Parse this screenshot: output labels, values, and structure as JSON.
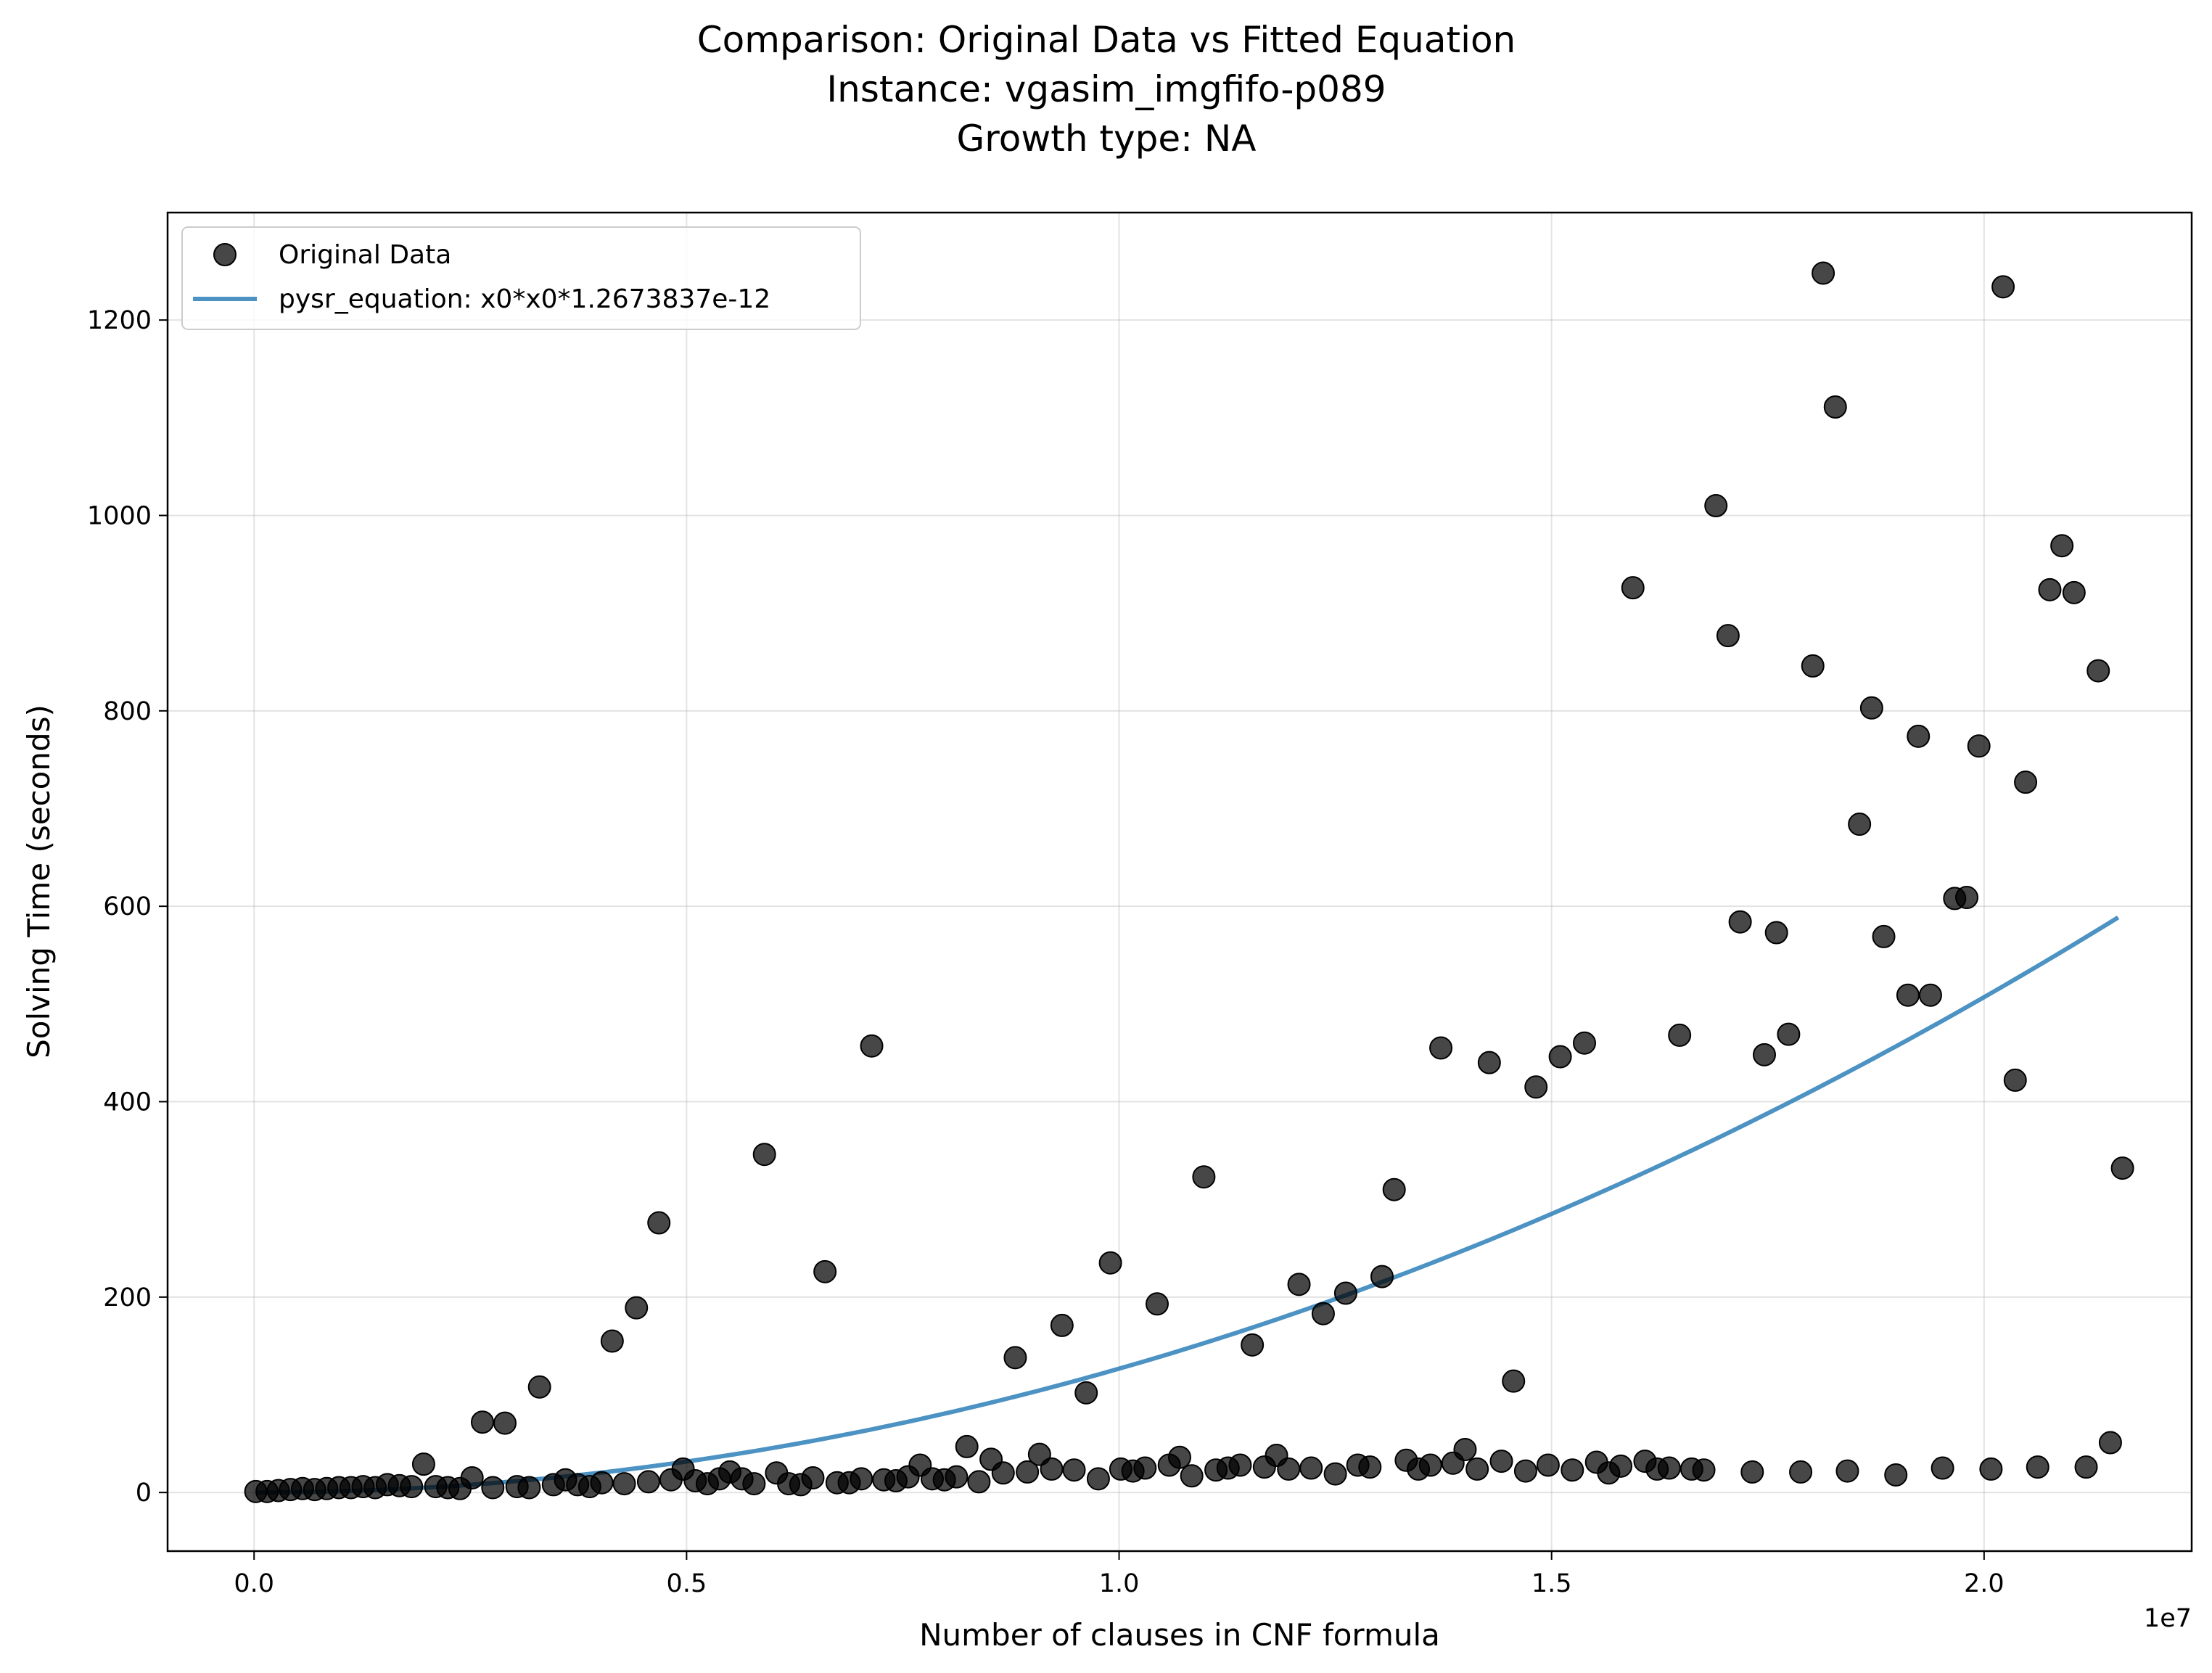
{
  "chart_data": {
    "type": "scatter",
    "title_lines": [
      "Comparison: Original Data vs Fitted Equation",
      "Instance: vgasim_imgfifo-p089",
      "Growth type: NA"
    ],
    "xlabel": "Number of clauses in CNF formula",
    "ylabel": "Solving Time (seconds)",
    "x_offset_label": "1e7",
    "xlim": [
      -1.0,
      22.4
    ],
    "ylim": [
      -60,
      1310
    ],
    "x_unit_scale": 10000000.0,
    "x_ticks": [
      0.0,
      0.5,
      1.0,
      1.5,
      2.0
    ],
    "x_tick_labels": [
      "0.0",
      "0.5",
      "1.0",
      "1.5",
      "2.0"
    ],
    "y_ticks": [
      0,
      200,
      400,
      600,
      800,
      1000,
      1200
    ],
    "y_tick_labels": [
      "0",
      "200",
      "400",
      "600",
      "800",
      "1000",
      "1200"
    ],
    "grid": true,
    "legend_position": "top-left",
    "colors": {
      "points": "#000000",
      "line": "#1f77b4"
    },
    "series": [
      {
        "name": "Original Data",
        "kind": "scatter",
        "note": "x in units of 1e6 clauses, y in seconds",
        "points": [
          [
            0.02,
            1
          ],
          [
            0.15,
            1
          ],
          [
            0.28,
            2
          ],
          [
            0.42,
            3
          ],
          [
            0.56,
            4
          ],
          [
            0.7,
            3
          ],
          [
            0.84,
            4
          ],
          [
            0.98,
            5
          ],
          [
            1.12,
            5
          ],
          [
            1.26,
            6
          ],
          [
            1.4,
            5
          ],
          [
            1.54,
            8
          ],
          [
            1.68,
            7
          ],
          [
            1.82,
            6
          ],
          [
            1.96,
            29
          ],
          [
            2.1,
            6
          ],
          [
            2.24,
            5
          ],
          [
            2.38,
            4
          ],
          [
            2.52,
            15
          ],
          [
            2.64,
            72
          ],
          [
            2.76,
            5
          ],
          [
            2.9,
            71
          ],
          [
            3.04,
            6
          ],
          [
            3.18,
            5
          ],
          [
            3.3,
            108
          ],
          [
            3.46,
            8
          ],
          [
            3.6,
            13
          ],
          [
            3.74,
            8
          ],
          [
            3.88,
            6
          ],
          [
            4.02,
            10
          ],
          [
            4.14,
            155
          ],
          [
            4.28,
            9
          ],
          [
            4.42,
            189
          ],
          [
            4.56,
            11
          ],
          [
            4.68,
            276
          ],
          [
            4.82,
            13
          ],
          [
            4.96,
            24
          ],
          [
            5.1,
            12
          ],
          [
            5.24,
            9
          ],
          [
            5.38,
            14
          ],
          [
            5.5,
            21
          ],
          [
            5.64,
            14
          ],
          [
            5.78,
            9
          ],
          [
            5.9,
            346
          ],
          [
            6.04,
            20
          ],
          [
            6.18,
            9
          ],
          [
            6.32,
            8
          ],
          [
            6.46,
            15
          ],
          [
            6.6,
            226
          ],
          [
            6.74,
            10
          ],
          [
            6.88,
            10
          ],
          [
            7.02,
            14
          ],
          [
            7.14,
            457
          ],
          [
            7.28,
            13
          ],
          [
            7.42,
            12
          ],
          [
            7.56,
            16
          ],
          [
            7.7,
            28
          ],
          [
            7.84,
            14
          ],
          [
            7.98,
            13
          ],
          [
            8.12,
            16
          ],
          [
            8.24,
            47
          ],
          [
            8.38,
            11
          ],
          [
            8.52,
            34
          ],
          [
            8.66,
            20
          ],
          [
            8.8,
            138
          ],
          [
            8.94,
            21
          ],
          [
            9.08,
            39
          ],
          [
            9.22,
            24
          ],
          [
            9.34,
            171
          ],
          [
            9.48,
            23
          ],
          [
            9.62,
            102
          ],
          [
            9.76,
            14
          ],
          [
            9.9,
            235
          ],
          [
            10.02,
            24
          ],
          [
            10.16,
            22
          ],
          [
            10.3,
            25
          ],
          [
            10.44,
            193
          ],
          [
            10.58,
            28
          ],
          [
            10.7,
            36
          ],
          [
            10.84,
            17
          ],
          [
            10.98,
            323
          ],
          [
            11.12,
            23
          ],
          [
            11.26,
            25
          ],
          [
            11.4,
            28
          ],
          [
            11.54,
            151
          ],
          [
            11.68,
            26
          ],
          [
            11.82,
            38
          ],
          [
            11.96,
            24
          ],
          [
            12.08,
            213
          ],
          [
            12.22,
            25
          ],
          [
            12.36,
            183
          ],
          [
            12.5,
            19
          ],
          [
            12.62,
            204
          ],
          [
            12.76,
            28
          ],
          [
            12.9,
            26
          ],
          [
            13.04,
            221
          ],
          [
            13.18,
            310
          ],
          [
            13.32,
            33
          ],
          [
            13.46,
            24
          ],
          [
            13.6,
            28
          ],
          [
            13.72,
            455
          ],
          [
            13.86,
            30
          ],
          [
            14.0,
            44
          ],
          [
            14.14,
            24
          ],
          [
            14.28,
            440
          ],
          [
            14.42,
            32
          ],
          [
            14.56,
            114
          ],
          [
            14.7,
            22
          ],
          [
            14.82,
            415
          ],
          [
            14.96,
            28
          ],
          [
            15.1,
            446
          ],
          [
            15.24,
            23
          ],
          [
            15.38,
            460
          ],
          [
            15.52,
            31
          ],
          [
            15.66,
            20
          ],
          [
            15.8,
            27
          ],
          [
            15.94,
            926
          ],
          [
            16.08,
            32
          ],
          [
            16.22,
            24
          ],
          [
            16.36,
            25
          ],
          [
            16.48,
            468
          ],
          [
            16.62,
            24
          ],
          [
            16.76,
            23
          ],
          [
            16.9,
            1010
          ],
          [
            17.04,
            877
          ],
          [
            17.18,
            584
          ],
          [
            17.32,
            21
          ],
          [
            17.46,
            448
          ],
          [
            17.6,
            573
          ],
          [
            17.74,
            469
          ],
          [
            17.88,
            21
          ],
          [
            18.02,
            846
          ],
          [
            18.14,
            1248
          ],
          [
            18.28,
            1111
          ],
          [
            18.42,
            22
          ],
          [
            18.56,
            684
          ],
          [
            18.7,
            803
          ],
          [
            18.84,
            569
          ],
          [
            18.98,
            18
          ],
          [
            19.12,
            509
          ],
          [
            19.24,
            774
          ],
          [
            19.38,
            509
          ],
          [
            19.52,
            25
          ],
          [
            19.66,
            608
          ],
          [
            19.8,
            609
          ],
          [
            19.94,
            764
          ],
          [
            20.08,
            24
          ],
          [
            20.22,
            1234
          ],
          [
            20.36,
            422
          ],
          [
            20.48,
            727
          ],
          [
            20.62,
            26
          ],
          [
            20.76,
            924
          ],
          [
            20.9,
            969
          ],
          [
            21.04,
            921
          ],
          [
            21.18,
            26
          ],
          [
            21.32,
            841
          ],
          [
            21.46,
            51
          ],
          [
            21.6,
            332
          ]
        ]
      },
      {
        "name": "pysr_equation: x0*x0*1.2673837e-12",
        "kind": "line",
        "equation_coefficient": 1.2673837e-12,
        "x_range": [
          0.02,
          21.55
        ]
      }
    ]
  }
}
